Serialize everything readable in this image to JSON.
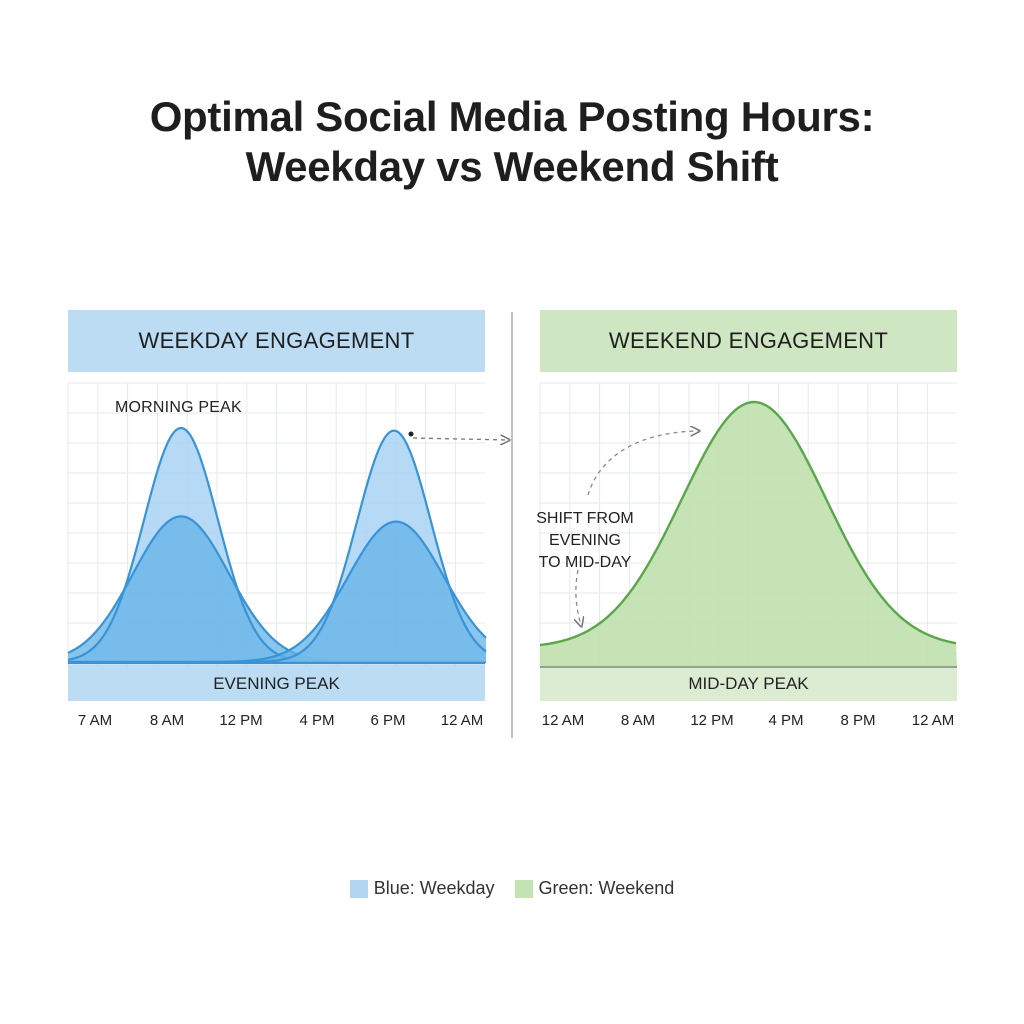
{
  "title_line1": "Optimal Social Media Posting Hours:",
  "title_line2": "Weekday vs Weekend Shift",
  "colors": {
    "weekday_line": "#3a93d6",
    "weekday_fill": "#62b1e6",
    "weekday_fill_light": "#a9d3f3",
    "weekday_header": "#bcdcf4",
    "weekend_line": "#5aa64a",
    "weekend_fill": "#bfe0ad",
    "weekend_header": "#cfe6c2",
    "weekend_band": "#dcecd3",
    "grid": "#e6e9ec"
  },
  "chart_data": [
    {
      "type": "area",
      "panel_title": "WEEKDAY ENGAGEMENT",
      "x_ticks": [
        "7 AM",
        "8 AM",
        "12 PM",
        "4 PM",
        "6 PM",
        "12 AM"
      ],
      "annotations": {
        "morning": "MORNING PEAK",
        "band": "EVENING PEAK"
      },
      "peaks": [
        {
          "label": "MORNING PEAK",
          "x_tick_index": 1,
          "outer_height": 0.9,
          "inner_height": 0.56
        },
        {
          "label": "EVENING PEAK",
          "x_tick_index": 4,
          "outer_height": 0.89,
          "inner_height": 0.54
        }
      ],
      "ylim": [
        0,
        1
      ],
      "grid": true
    },
    {
      "type": "area",
      "panel_title": "WEEKEND ENGAGEMENT",
      "x_ticks": [
        "12 AM",
        "8 AM",
        "12 PM",
        "4 PM",
        "8 PM",
        "12 AM"
      ],
      "annotations": {
        "shift_line1": "SHIFT FROM",
        "shift_line2": "EVENING",
        "shift_line3": "TO MID-DAY",
        "band": "MID-DAY PEAK"
      },
      "peaks": [
        {
          "label": "MID-DAY PEAK",
          "x_between_ticks": [
            2,
            3
          ],
          "height": 1.0
        }
      ],
      "ylim": [
        0,
        1
      ],
      "grid": true
    }
  ],
  "legend": [
    {
      "label": "Blue: Weekday",
      "color": "#b3d7f3"
    },
    {
      "label": "Green: Weekend",
      "color": "#c4e3b3"
    }
  ]
}
